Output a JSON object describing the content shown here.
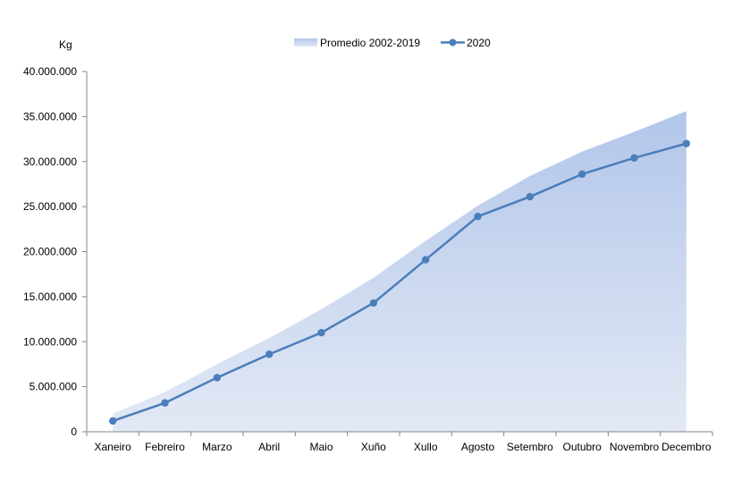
{
  "chart_data": {
    "type": "area",
    "ylabel": "Kg",
    "ylim": [
      0,
      40000000
    ],
    "ytick_labels": [
      "0",
      "5.000.000",
      "10.000.000",
      "15.000.000",
      "20.000.000",
      "25.000.000",
      "30.000.000",
      "35.000.000",
      "40.000.000"
    ],
    "categories": [
      "Xaneiro",
      "Febreiro",
      "Marzo",
      "Abril",
      "Maio",
      "Xuño",
      "Xullo",
      "Agosto",
      "Setembro",
      "Outubro",
      "Novembro",
      "Decembro"
    ],
    "legend_position": "top-center",
    "grid": false,
    "series": [
      {
        "name": "Promedio 2002-2019",
        "type": "area",
        "color": "#b4c7e7",
        "values": [
          2000000,
          4400000,
          7500000,
          10400000,
          13600000,
          17100000,
          21200000,
          25100000,
          28400000,
          31100000,
          33300000,
          35600000
        ]
      },
      {
        "name": "2020",
        "type": "line",
        "color": "#4a7ebb",
        "values": [
          1200000,
          3200000,
          6000000,
          8600000,
          11000000,
          14300000,
          19100000,
          23900000,
          26100000,
          28600000,
          30400000,
          32000000
        ]
      }
    ]
  }
}
